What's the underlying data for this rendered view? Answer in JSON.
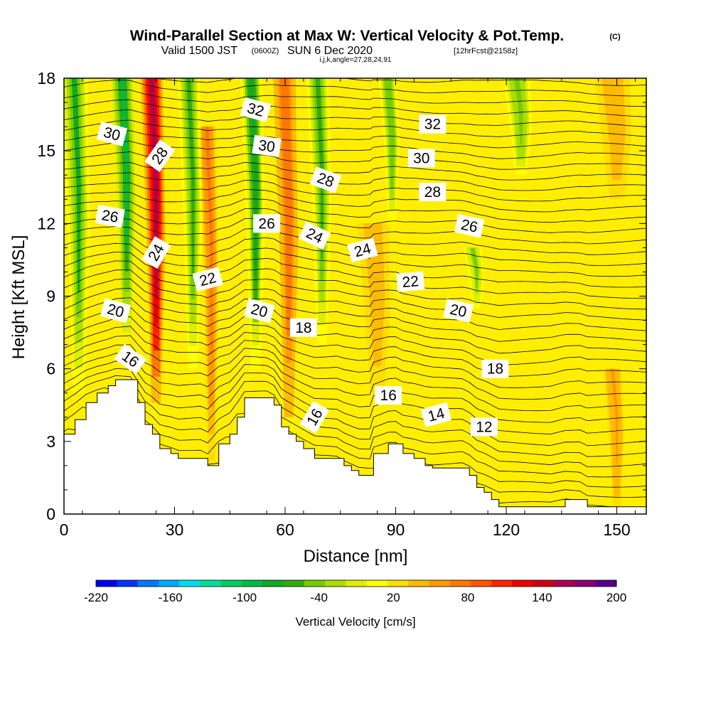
{
  "title": "Wind-Parallel Section at Max W: Vertical Velocity & Pot.Temp.",
  "title_mark": "(C)",
  "subtitle_main": "Valid 1500 JST",
  "subtitle_utc": "(0600Z)",
  "subtitle_date": "SUN 6 Dec 2020",
  "subtitle_fcst": "[12hrFcst@2158z]",
  "subtitle_indices": "i,j,k,angle=27,28,24,91",
  "chart_data": {
    "type": "heatmap",
    "xlabel": "Distance [nm]",
    "ylabel": "Height [Kft MSL]",
    "xlim": [
      0,
      158
    ],
    "ylim": [
      0,
      18
    ],
    "xticks": [
      0,
      30,
      60,
      90,
      120,
      150
    ],
    "xtick_labels": [
      "0",
      "30",
      "60",
      "90",
      "120",
      "150"
    ],
    "yticks": [
      0,
      3,
      6,
      9,
      12,
      15,
      18
    ],
    "ytick_labels": [
      "0",
      "3",
      "6",
      "9",
      "12",
      "15",
      "18"
    ],
    "colorbar": {
      "label": "Vertical Velocity [cm/s]",
      "range": [
        -220,
        200
      ],
      "tick_values": [
        -220,
        -160,
        -100,
        -40,
        20,
        80,
        140,
        200
      ],
      "tick_labels": [
        "-220",
        "-160",
        "-100",
        "-40",
        "20",
        "80",
        "140",
        "200"
      ],
      "colors": [
        "#0000ee",
        "#0033ff",
        "#0077ff",
        "#00aaff",
        "#00ddee",
        "#00dd99",
        "#00cc66",
        "#00bb44",
        "#11aa22",
        "#33aa11",
        "#77cc00",
        "#aadd00",
        "#ddee00",
        "#ffff00",
        "#ffdd00",
        "#ffbb00",
        "#ff9900",
        "#ff7700",
        "#ff5500",
        "#ff2200",
        "#ee0000",
        "#cc0011",
        "#aa0055",
        "#880077",
        "#550088"
      ]
    },
    "theta_contour_labels": [
      {
        "text": "32",
        "x": 52,
        "y": 16.7,
        "rot": 15
      },
      {
        "text": "32",
        "x": 100,
        "y": 16.1,
        "rot": 0
      },
      {
        "text": "30",
        "x": 13,
        "y": 15.7,
        "rot": 15
      },
      {
        "text": "30",
        "x": 55,
        "y": 15.2,
        "rot": 8
      },
      {
        "text": "30",
        "x": 97,
        "y": 14.7,
        "rot": 0
      },
      {
        "text": "28",
        "x": 26,
        "y": 14.8,
        "rot": -55
      },
      {
        "text": "28",
        "x": 71,
        "y": 13.8,
        "rot": 20
      },
      {
        "text": "28",
        "x": 100,
        "y": 13.3,
        "rot": 0
      },
      {
        "text": "26",
        "x": 12.5,
        "y": 12.3,
        "rot": 10
      },
      {
        "text": "26",
        "x": 55,
        "y": 12.0,
        "rot": 0
      },
      {
        "text": "26",
        "x": 110,
        "y": 11.9,
        "rot": 12
      },
      {
        "text": "24",
        "x": 68,
        "y": 11.5,
        "rot": 25
      },
      {
        "text": "24",
        "x": 81,
        "y": 10.9,
        "rot": -15
      },
      {
        "text": "24",
        "x": 25,
        "y": 10.8,
        "rot": -60
      },
      {
        "text": "22",
        "x": 39,
        "y": 9.7,
        "rot": -15
      },
      {
        "text": "22",
        "x": 94,
        "y": 9.6,
        "rot": -5
      },
      {
        "text": "20",
        "x": 14,
        "y": 8.4,
        "rot": 15
      },
      {
        "text": "20",
        "x": 53,
        "y": 8.4,
        "rot": 15
      },
      {
        "text": "20",
        "x": 107,
        "y": 8.4,
        "rot": 12
      },
      {
        "text": "18",
        "x": 65,
        "y": 7.7,
        "rot": 0
      },
      {
        "text": "18",
        "x": 117,
        "y": 6.0,
        "rot": 0
      },
      {
        "text": "16",
        "x": 18,
        "y": 6.4,
        "rot": 35
      },
      {
        "text": "16",
        "x": 88,
        "y": 4.9,
        "rot": 0
      },
      {
        "text": "16",
        "x": 68,
        "y": 4.0,
        "rot": -60
      },
      {
        "text": "14",
        "x": 101,
        "y": 4.1,
        "rot": -15
      },
      {
        "text": "12",
        "x": 114,
        "y": 3.6,
        "rot": 0
      }
    ],
    "terrain_profile": [
      [
        0,
        3.3
      ],
      [
        3,
        3.9
      ],
      [
        6,
        4.6
      ],
      [
        9,
        5.0
      ],
      [
        12,
        5.3
      ],
      [
        14,
        5.55
      ],
      [
        18,
        5.55
      ],
      [
        20,
        4.6
      ],
      [
        22,
        3.7
      ],
      [
        24,
        3.3
      ],
      [
        26,
        2.7
      ],
      [
        29,
        2.5
      ],
      [
        31,
        2.3
      ],
      [
        37,
        2.3
      ],
      [
        39,
        2.0
      ],
      [
        42,
        2.9
      ],
      [
        45,
        3.3
      ],
      [
        47,
        4.0
      ],
      [
        49,
        4.8
      ],
      [
        55,
        4.8
      ],
      [
        57,
        4.5
      ],
      [
        59,
        3.6
      ],
      [
        61,
        3.3
      ],
      [
        63,
        3.0
      ],
      [
        65,
        2.7
      ],
      [
        68,
        2.3
      ],
      [
        74,
        2.3
      ],
      [
        76,
        2.0
      ],
      [
        78,
        1.8
      ],
      [
        80,
        1.6
      ],
      [
        83,
        1.6
      ],
      [
        84,
        2.5
      ],
      [
        88,
        2.9
      ],
      [
        90,
        2.9
      ],
      [
        92,
        2.5
      ],
      [
        95,
        2.3
      ],
      [
        98,
        2.0
      ],
      [
        100,
        1.9
      ],
      [
        108,
        1.9
      ],
      [
        110,
        1.6
      ],
      [
        112,
        1.1
      ],
      [
        114,
        0.9
      ],
      [
        116,
        0.6
      ],
      [
        118,
        0.3
      ],
      [
        132,
        0.3
      ],
      [
        136,
        0.6
      ],
      [
        140,
        0.6
      ],
      [
        142,
        0.3
      ],
      [
        158,
        0.3
      ]
    ],
    "velocity_features": [
      {
        "x": 25,
        "top": 18,
        "bottom": 4.6,
        "value": 160,
        "width": 5
      },
      {
        "x": 40,
        "top": 16,
        "bottom": 2.2,
        "value": 70,
        "width": 4
      },
      {
        "x": 61,
        "top": 18,
        "bottom": 4.0,
        "value": 80,
        "width": 5
      },
      {
        "x": 85,
        "top": 12,
        "bottom": 5.0,
        "value": 45,
        "width": 7
      },
      {
        "x": 150,
        "top": 18,
        "bottom": 13,
        "value": 45,
        "width": 8
      },
      {
        "x": 150,
        "top": 6,
        "bottom": 0.3,
        "value": 50,
        "width": 4
      },
      {
        "x": 4,
        "top": 18,
        "bottom": 5.0,
        "value": -70,
        "width": 6
      },
      {
        "x": 17,
        "top": 18,
        "bottom": 7.5,
        "value": -90,
        "width": 5
      },
      {
        "x": 35,
        "top": 18,
        "bottom": 6.0,
        "value": -60,
        "width": 5
      },
      {
        "x": 52,
        "top": 18,
        "bottom": 6.0,
        "value": -75,
        "width": 5
      },
      {
        "x": 70,
        "top": 18,
        "bottom": 7.0,
        "value": -55,
        "width": 5
      },
      {
        "x": 89,
        "top": 18,
        "bottom": 12,
        "value": -50,
        "width": 4
      },
      {
        "x": 124,
        "top": 18,
        "bottom": 14,
        "value": -45,
        "width": 6
      },
      {
        "x": 112,
        "top": 11,
        "bottom": 8.5,
        "value": -40,
        "width": 4
      }
    ]
  }
}
